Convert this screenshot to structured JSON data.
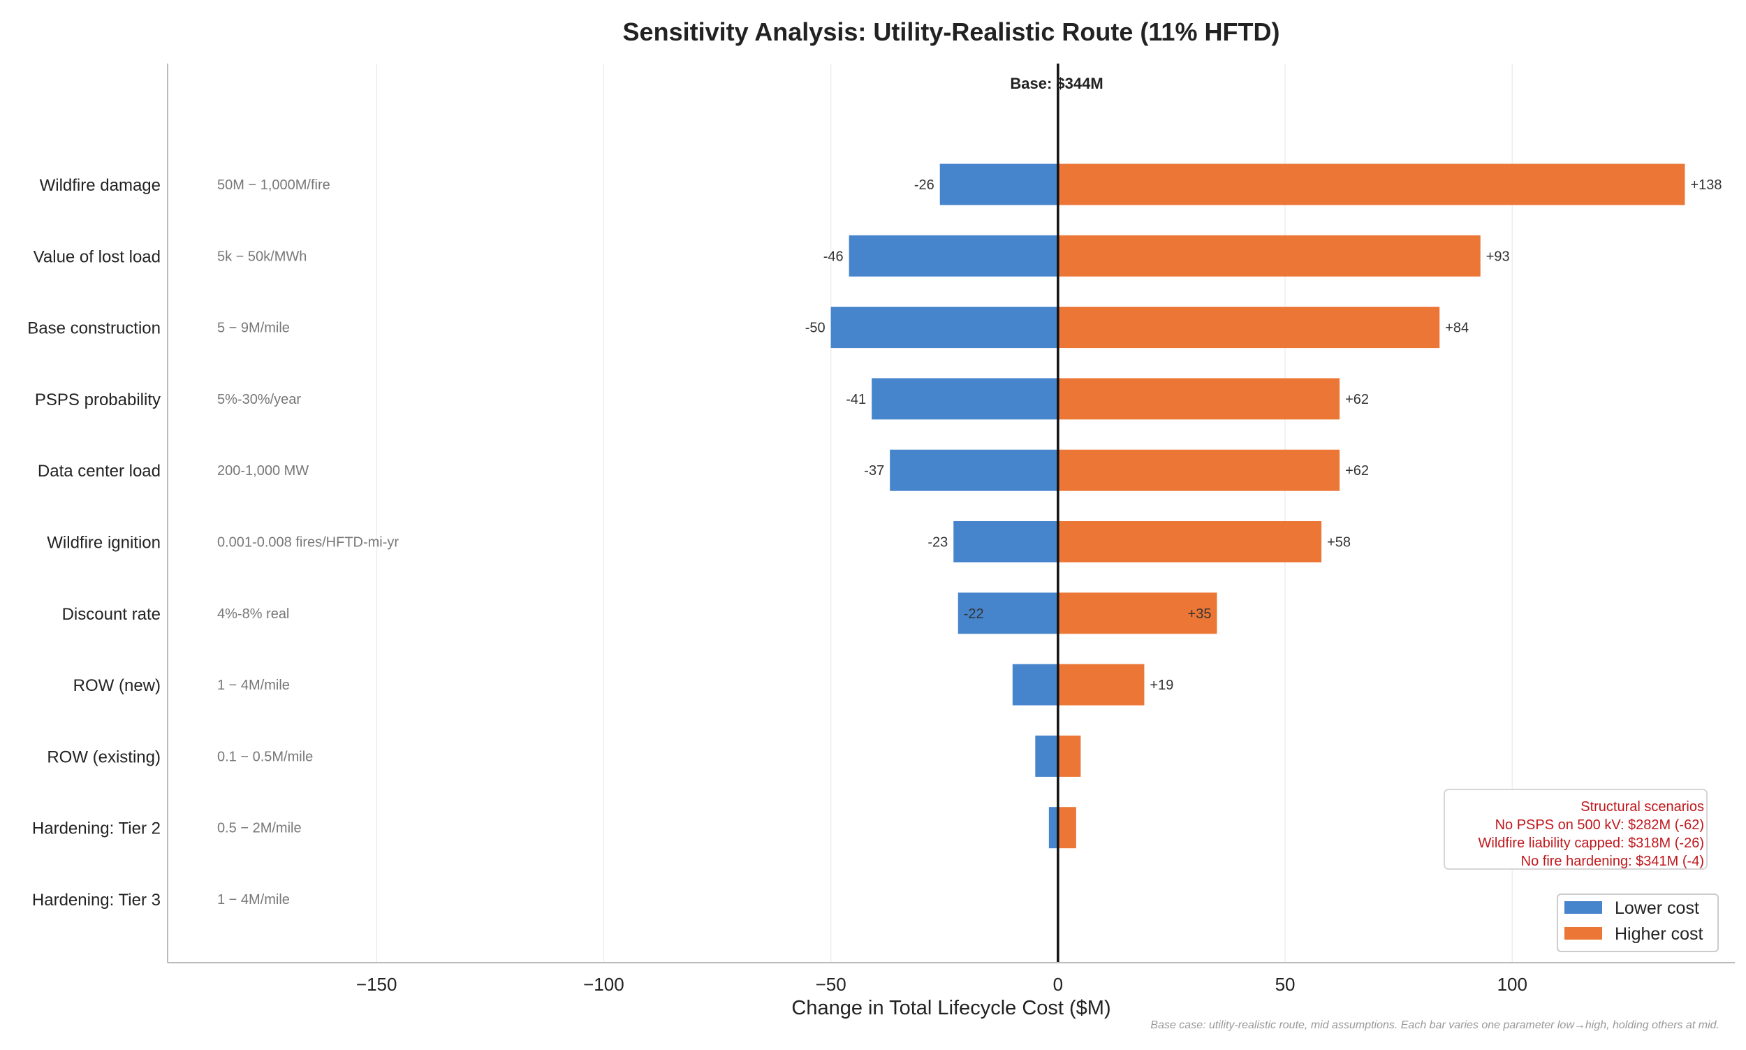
{
  "chart_data": {
    "type": "bar",
    "orientation": "horizontal",
    "title": "Sensitivity Analysis: Utility-Realistic Route (11% HFTD)",
    "xlabel": "Change in Total Lifecycle Cost ($M)",
    "ylabel": "",
    "xlim": [
      -196,
      149
    ],
    "xticks": [
      -150,
      -100,
      -50,
      0,
      50,
      100
    ],
    "xtick_labels": [
      "−150",
      "−100",
      "−50",
      "0",
      "50",
      "100"
    ],
    "grid": "vertical, light",
    "base_label": "Base: $344M",
    "categories": [
      "Wildfire damage",
      "Value of lost load",
      "Base construction",
      "PSPS probability",
      "Data center load",
      "Wildfire ignition",
      "Discount rate",
      "ROW (new)",
      "ROW (existing)",
      "Hardening: Tier 2",
      "Hardening: Tier 3"
    ],
    "ranges": [
      "50M − 1,000M/fire",
      "5k − 50k/MWh",
      "5 − 9M/mile",
      "5%-30%/year",
      "200-1,000 MW",
      "0.001-0.008 fires/HFTD-mi-yr",
      "4%-8% real",
      "1 − 4M/mile",
      "0.1 − 0.5M/mile",
      "0.5 − 2M/mile",
      "1 − 4M/mile"
    ],
    "series": [
      {
        "name": "Lower cost",
        "color": "#4684cc",
        "values": [
          -26,
          -46,
          -50,
          -41,
          -37,
          -23,
          -22,
          -10,
          -5,
          -2,
          0
        ],
        "labels": [
          "-26",
          "-46",
          "-50",
          "-41",
          "-37",
          "-23",
          "-22",
          "",
          "",
          "",
          ""
        ]
      },
      {
        "name": "Higher cost",
        "color": "#ec7636",
        "values": [
          138,
          93,
          84,
          62,
          62,
          58,
          35,
          19,
          5,
          4,
          0
        ],
        "labels": [
          "+138",
          "+93",
          "+84",
          "+62",
          "+62",
          "+58",
          "+35",
          "+19",
          "",
          "",
          ""
        ]
      }
    ],
    "legend_placement": "lower-right",
    "annotation": {
      "color": "#c0171c",
      "lines": [
        "Structural scenarios",
        "No PSPS on 500 kV: $282M (-62)",
        "Wildfire liability capped: $318M (-26)",
        "No fire hardening: $341M (-4)"
      ]
    },
    "footnote": "Base case: utility-realistic route, mid assumptions. Each bar varies one parameter low→high, holding others at mid."
  }
}
